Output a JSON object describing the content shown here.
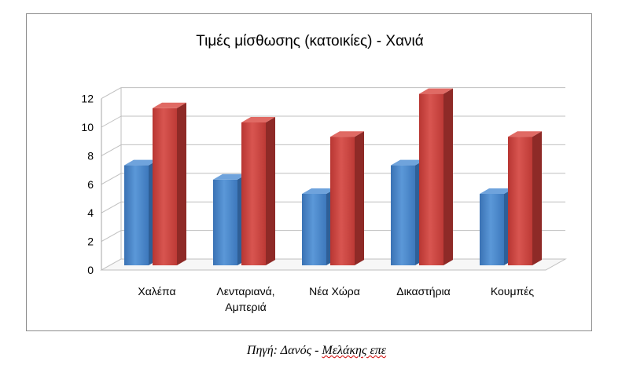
{
  "chart_data": {
    "type": "bar",
    "title": "Τιμές μίσθωσης (κατοικίες) - Χανιά",
    "categories": [
      [
        "Χαλέπα"
      ],
      [
        "Λενταριανά,",
        "Αμπεριά"
      ],
      [
        "Νέα Χώρα"
      ],
      [
        "Δικαστήρια"
      ],
      [
        "Κουμπές"
      ]
    ],
    "series": [
      {
        "values": [
          7,
          6,
          5,
          7,
          5
        ],
        "color": "#4a86c8"
      },
      {
        "values": [
          11,
          10,
          9,
          12,
          9
        ],
        "color": "#c9403c"
      }
    ],
    "y_ticks": [
      "0",
      "2",
      "4",
      "6",
      "8",
      "10",
      "12"
    ],
    "ylim": [
      0,
      12
    ],
    "grid": true,
    "style": "3d-column"
  },
  "caption": {
    "prefix": "Πηγή: Δανός - ",
    "underlined": "Μελάκης επε"
  }
}
